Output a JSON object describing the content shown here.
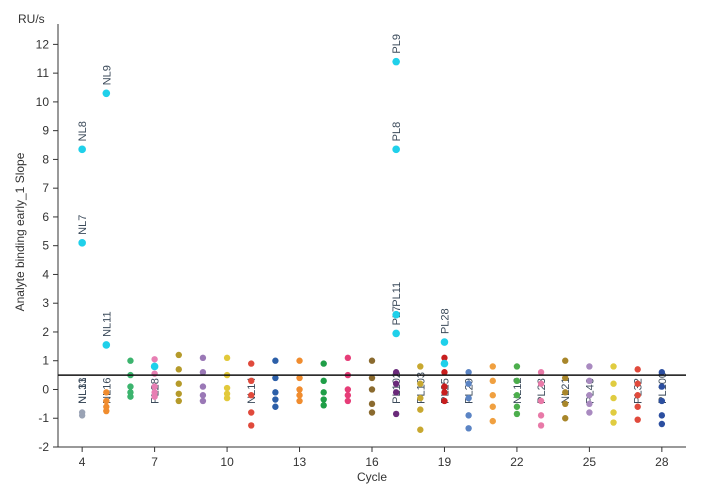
{
  "chart_data": {
    "type": "scatter",
    "title": "",
    "unit": "RU/s",
    "xlabel": "Cycle",
    "ylabel": "Analyte binding early_1 Slope",
    "xlim": [
      3,
      29
    ],
    "ylim": [
      -2,
      12.5
    ],
    "xticks": [
      4,
      7,
      10,
      13,
      16,
      19,
      22,
      25,
      28
    ],
    "yticks": [
      -2,
      -1,
      0,
      1,
      2,
      3,
      4,
      5,
      6,
      7,
      8,
      9,
      10,
      11,
      12
    ],
    "reference_line": 0.5,
    "highlight_color": "#1fd0ea",
    "cycle_colors": {
      "4": "#9aa3b5",
      "5": "#f08c2e",
      "6": "#3cb46e",
      "7": "#e77fb3",
      "8": "#b59a2a",
      "9": "#9a78b6",
      "10": "#e2c93a",
      "11": "#e04a3c",
      "12": "#2c5fa8",
      "13": "#f08c2e",
      "14": "#1f9e47",
      "15": "#e63d78",
      "16": "#8a6a2e",
      "17": "#6a2a7a",
      "18": "#c8a830",
      "19": "#c81e1e",
      "20": "#5b84c4",
      "21": "#f0a040",
      "22": "#4cae4c",
      "23": "#e87aa8",
      "24": "#a8862a",
      "25": "#a98ac0",
      "26": "#e0cc40",
      "27": "#e04a3c",
      "28": "#2c4fa0"
    },
    "series": [
      {
        "x": 4,
        "points": [
          -0.8,
          -0.9
        ]
      },
      {
        "x": 5,
        "points": [
          -0.1,
          -0.4,
          -0.6,
          -0.75
        ]
      },
      {
        "x": 6,
        "points": [
          1.0,
          0.5,
          0.1,
          -0.1,
          -0.25
        ]
      },
      {
        "x": 7,
        "points": [
          1.05,
          0.55,
          0.1,
          -0.1,
          -0.25
        ]
      },
      {
        "x": 8,
        "points": [
          1.2,
          0.7,
          0.2,
          -0.15,
          -0.4
        ]
      },
      {
        "x": 9,
        "points": [
          1.1,
          0.6,
          0.1,
          -0.2,
          -0.4
        ]
      },
      {
        "x": 10,
        "points": [
          1.1,
          0.5,
          0.05,
          -0.15,
          -0.3
        ]
      },
      {
        "x": 11,
        "points": [
          0.9,
          0.3,
          -0.2,
          -0.8,
          -1.25
        ]
      },
      {
        "x": 12,
        "points": [
          1.0,
          0.4,
          -0.1,
          -0.35,
          -0.6
        ]
      },
      {
        "x": 13,
        "points": [
          1.0,
          0.4,
          0.0,
          -0.2,
          -0.4
        ]
      },
      {
        "x": 14,
        "points": [
          0.9,
          0.3,
          -0.1,
          -0.35,
          -0.55
        ]
      },
      {
        "x": 15,
        "points": [
          1.1,
          0.5,
          0.0,
          -0.2,
          -0.4
        ]
      },
      {
        "x": 16,
        "points": [
          1.0,
          0.4,
          0.0,
          -0.5,
          -0.8
        ]
      },
      {
        "x": 17,
        "points": [
          0.6,
          0.2,
          -0.1,
          -0.85
        ]
      },
      {
        "x": 18,
        "points": [
          0.8,
          0.2,
          -0.3,
          -0.7,
          -1.4
        ]
      },
      {
        "x": 19,
        "points": [
          1.1,
          0.6,
          0.1,
          -0.1,
          -0.4
        ]
      },
      {
        "x": 20,
        "points": [
          0.6,
          0.2,
          -0.3,
          -0.9,
          -1.35
        ]
      },
      {
        "x": 21,
        "points": [
          0.8,
          0.3,
          -0.2,
          -0.6,
          -1.1
        ]
      },
      {
        "x": 22,
        "points": [
          0.8,
          0.3,
          -0.2,
          -0.6,
          -0.85
        ]
      },
      {
        "x": 23,
        "points": [
          0.6,
          0.2,
          -0.4,
          -0.9,
          -1.25
        ]
      },
      {
        "x": 24,
        "points": [
          1.0,
          0.4,
          -0.1,
          -0.5,
          -1.0
        ]
      },
      {
        "x": 25,
        "points": [
          0.8,
          0.3,
          -0.2,
          -0.5,
          -0.8
        ]
      },
      {
        "x": 26,
        "points": [
          0.8,
          0.2,
          -0.3,
          -0.8,
          -1.15
        ]
      },
      {
        "x": 27,
        "points": [
          0.7,
          0.2,
          -0.2,
          -0.6,
          -1.05
        ]
      },
      {
        "x": 28,
        "points": [
          0.6,
          0.1,
          -0.4,
          -0.9,
          -1.2
        ]
      }
    ],
    "highlighted_points": [
      {
        "label": "NL7",
        "x": 4,
        "y": 5.1
      },
      {
        "label": "NL8",
        "x": 4,
        "y": 8.35
      },
      {
        "label": "NL9",
        "x": 5,
        "y": 10.3
      },
      {
        "label": "NL11",
        "x": 5,
        "y": 1.55
      },
      {
        "label": "PL9",
        "x": 17,
        "y": 11.4
      },
      {
        "label": "PL8",
        "x": 17,
        "y": 8.35
      },
      {
        "label": "PL11",
        "x": 17,
        "y": 2.6
      },
      {
        "label": "PL7",
        "x": 17,
        "y": 1.95
      },
      {
        "label": "PL28",
        "x": 19,
        "y": 1.65
      },
      {
        "label": "",
        "x": 7,
        "y": 0.8
      },
      {
        "label": "",
        "x": 19,
        "y": 0.9
      }
    ],
    "crowded_labels": [
      {
        "x": 4,
        "text": "NL31"
      },
      {
        "x": 4,
        "text": "NL13"
      },
      {
        "x": 5,
        "text": "NL16"
      },
      {
        "x": 7,
        "text": "PL28"
      },
      {
        "x": 11,
        "text": "NL14"
      },
      {
        "x": 17,
        "text": "PL102"
      },
      {
        "x": 18,
        "text": "PL103"
      },
      {
        "x": 19,
        "text": "PL25"
      },
      {
        "x": 20,
        "text": "PL29"
      },
      {
        "x": 22,
        "text": "NL12"
      },
      {
        "x": 23,
        "text": "PL23"
      },
      {
        "x": 24,
        "text": "NL21"
      },
      {
        "x": 25,
        "text": "PL46"
      },
      {
        "x": 27,
        "text": "PL32"
      },
      {
        "x": 28,
        "text": "PL100"
      }
    ]
  }
}
